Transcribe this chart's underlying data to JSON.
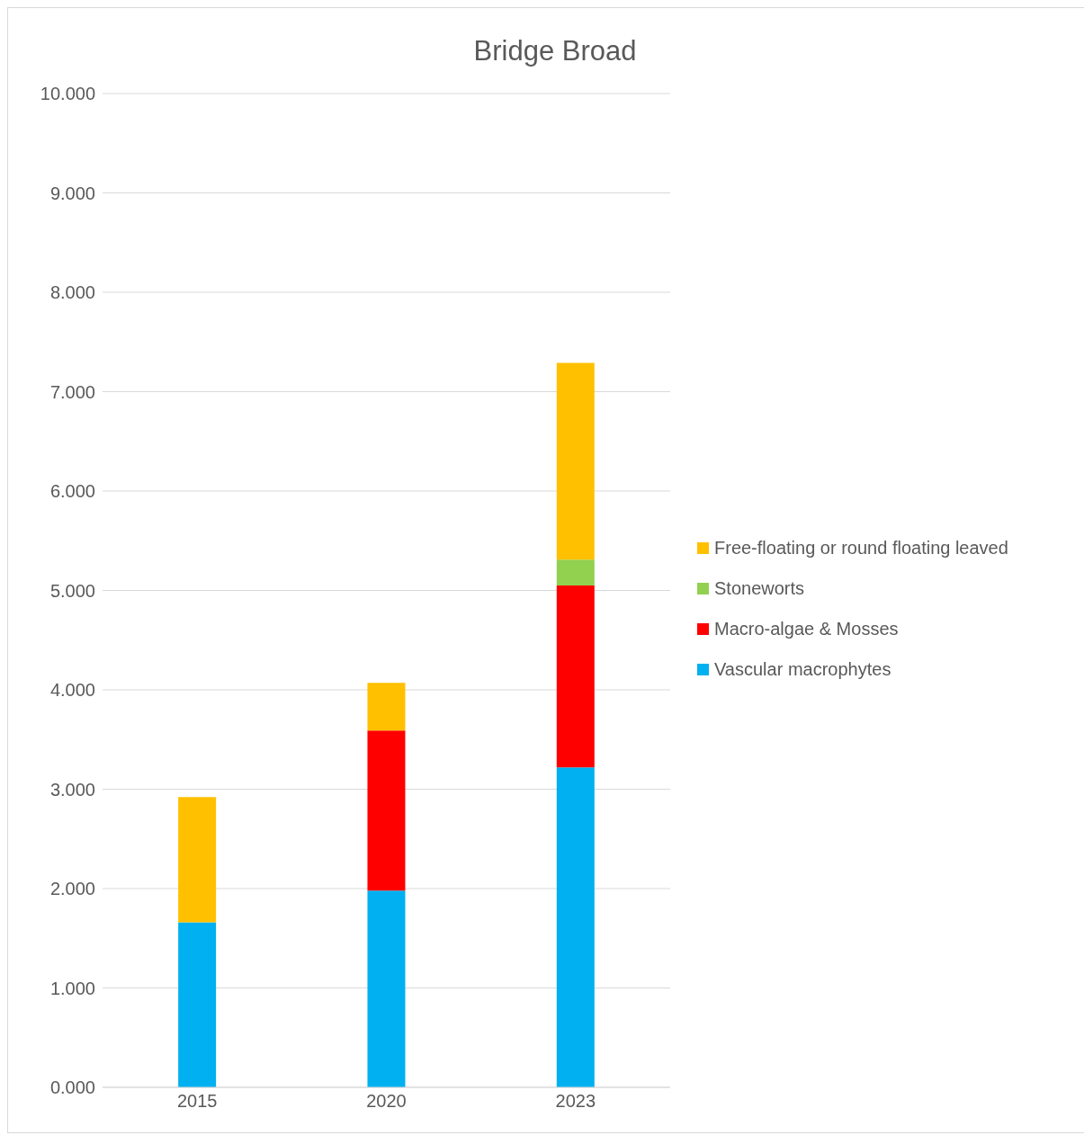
{
  "chart_data": {
    "type": "bar",
    "title": "Bridge Broad",
    "stacked": true,
    "categories": [
      "2015",
      "2020",
      "2023"
    ],
    "series": [
      {
        "name": "Vascular macrophytes",
        "color": "#00b0f0",
        "values": [
          1.66,
          1.98,
          3.22
        ]
      },
      {
        "name": "Macro-algae & Mosses",
        "color": "#ff0000",
        "values": [
          0,
          1.61,
          1.83
        ]
      },
      {
        "name": "Stoneworts",
        "color": "#92d050",
        "values": [
          0,
          0,
          0.26
        ]
      },
      {
        "name": "Free-floating or round floating leaved",
        "color": "#ffc000",
        "values": [
          1.26,
          0.48,
          1.98
        ]
      }
    ],
    "ylim": [
      0,
      10
    ],
    "yticks": [
      {
        "value": 0,
        "label": "0.000"
      },
      {
        "value": 1,
        "label": "1.000"
      },
      {
        "value": 2,
        "label": "2.000"
      },
      {
        "value": 3,
        "label": "3.000"
      },
      {
        "value": 4,
        "label": "4.000"
      },
      {
        "value": 5,
        "label": "5.000"
      },
      {
        "value": 6,
        "label": "6.000"
      },
      {
        "value": 7,
        "label": "7.000"
      },
      {
        "value": 8,
        "label": "8.000"
      },
      {
        "value": 9,
        "label": "9.000"
      },
      {
        "value": 10,
        "label": "10.000"
      }
    ],
    "grid": "y",
    "legend": "right"
  }
}
